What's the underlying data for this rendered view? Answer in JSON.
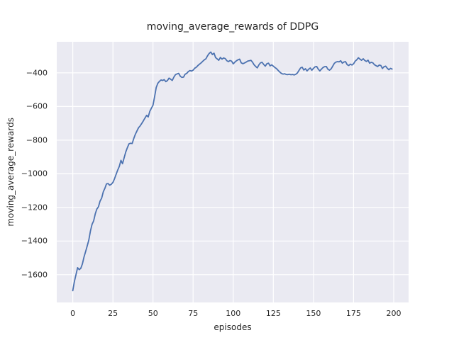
{
  "chart_data": {
    "type": "line",
    "title": "moving_average_rewards of DDPG",
    "xlabel": "episodes",
    "ylabel": "moving_average_rewards",
    "xlim": [
      -10,
      209.3
    ],
    "ylim": [
      -1765,
      -215
    ],
    "grid": true,
    "legend": false,
    "xticks": [
      {
        "value": 0,
        "label": "0"
      },
      {
        "value": 25,
        "label": "25"
      },
      {
        "value": 50,
        "label": "50"
      },
      {
        "value": 75,
        "label": "75"
      },
      {
        "value": 100,
        "label": "100"
      },
      {
        "value": 125,
        "label": "125"
      },
      {
        "value": 150,
        "label": "150"
      },
      {
        "value": 175,
        "label": "175"
      },
      {
        "value": 200,
        "label": "200"
      }
    ],
    "yticks": [
      {
        "value": -400,
        "label": "−400"
      },
      {
        "value": -600,
        "label": "−600"
      },
      {
        "value": -800,
        "label": "−800"
      },
      {
        "value": -1000,
        "label": "−1000"
      },
      {
        "value": -1200,
        "label": "−1200"
      },
      {
        "value": -1400,
        "label": "−1400"
      },
      {
        "value": -1600,
        "label": "−1600"
      }
    ],
    "style": {
      "axes_bg": "#eaeaf2",
      "grid_color": "#ffffff",
      "fig_bg": "#ffffff",
      "text_color": "#262626"
    },
    "series": [
      {
        "name": "moving_average_rewards",
        "color": "#4c72b0",
        "x_start": 0,
        "x_step": 1,
        "y": [
          -1695,
          -1640,
          -1600,
          -1558,
          -1570,
          -1562,
          -1535,
          -1495,
          -1462,
          -1428,
          -1394,
          -1340,
          -1300,
          -1280,
          -1238,
          -1210,
          -1196,
          -1162,
          -1145,
          -1107,
          -1086,
          -1060,
          -1058,
          -1068,
          -1062,
          -1051,
          -1030,
          -1003,
          -978,
          -956,
          -920,
          -940,
          -905,
          -870,
          -845,
          -822,
          -818,
          -820,
          -790,
          -765,
          -745,
          -726,
          -715,
          -700,
          -685,
          -668,
          -652,
          -662,
          -628,
          -610,
          -592,
          -540,
          -487,
          -462,
          -450,
          -442,
          -445,
          -440,
          -452,
          -445,
          -431,
          -438,
          -445,
          -425,
          -410,
          -406,
          -403,
          -420,
          -427,
          -425,
          -408,
          -403,
          -392,
          -386,
          -389,
          -384,
          -372,
          -366,
          -356,
          -348,
          -340,
          -331,
          -322,
          -316,
          -298,
          -284,
          -276,
          -291,
          -283,
          -309,
          -317,
          -325,
          -308,
          -318,
          -311,
          -315,
          -327,
          -333,
          -326,
          -330,
          -346,
          -336,
          -328,
          -322,
          -318,
          -340,
          -345,
          -341,
          -336,
          -330,
          -328,
          -325,
          -336,
          -352,
          -362,
          -370,
          -352,
          -340,
          -337,
          -350,
          -360,
          -345,
          -342,
          -358,
          -352,
          -360,
          -368,
          -375,
          -385,
          -395,
          -403,
          -407,
          -405,
          -409,
          -410,
          -408,
          -411,
          -409,
          -412,
          -408,
          -400,
          -385,
          -370,
          -366,
          -383,
          -375,
          -388,
          -378,
          -371,
          -384,
          -373,
          -364,
          -362,
          -378,
          -388,
          -377,
          -368,
          -363,
          -362,
          -378,
          -384,
          -376,
          -360,
          -343,
          -336,
          -333,
          -334,
          -328,
          -342,
          -335,
          -333,
          -351,
          -356,
          -348,
          -353,
          -346,
          -330,
          -322,
          -310,
          -318,
          -325,
          -316,
          -326,
          -332,
          -324,
          -342,
          -337,
          -340,
          -351,
          -357,
          -362,
          -353,
          -356,
          -374,
          -363,
          -360,
          -372,
          -381,
          -373,
          -377
        ]
      }
    ]
  }
}
